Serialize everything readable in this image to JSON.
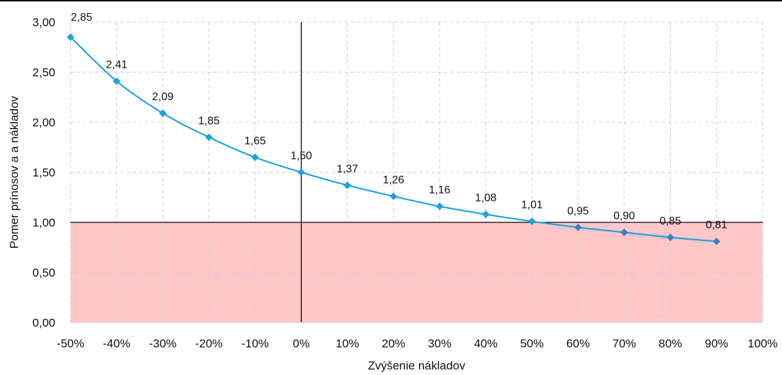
{
  "chart_data": {
    "type": "line",
    "title": "",
    "xlabel": "Zvýšenie nákladov",
    "ylabel": "Pomer prínosov a a nákladov",
    "x_ticks": [
      "-50%",
      "-40%",
      "-30%",
      "-20%",
      "-10%",
      "0%",
      "10%",
      "20%",
      "30%",
      "40%",
      "50%",
      "60%",
      "70%",
      "80%",
      "90%",
      "100%"
    ],
    "y_ticks": [
      "0,00",
      "0,50",
      "1,00",
      "1,50",
      "2,00",
      "2,50",
      "3,00"
    ],
    "x_range": [
      -50,
      100
    ],
    "ylim": [
      0,
      3
    ],
    "grid": true,
    "legend": "none",
    "threshold": 1.0,
    "threshold_fill_color": "#FFC7C7",
    "series": [
      {
        "color": "#1FA2E0",
        "marker_color_above": "#1FA2E0",
        "marker_color_below": "#3B82C4",
        "x": [
          -50,
          -40,
          -30,
          -20,
          -10,
          0,
          10,
          20,
          30,
          40,
          50,
          60,
          70,
          80,
          90
        ],
        "values": [
          2.85,
          2.41,
          2.09,
          1.85,
          1.65,
          1.5,
          1.37,
          1.26,
          1.16,
          1.08,
          1.01,
          0.95,
          0.9,
          0.85,
          0.81
        ],
        "labels": [
          "2,85",
          "2,41",
          "2,09",
          "1,85",
          "1,65",
          "1,50",
          "1,37",
          "1,26",
          "1,16",
          "1,08",
          "1,01",
          "0,95",
          "0,90",
          "0,85",
          "0,81"
        ]
      }
    ]
  }
}
